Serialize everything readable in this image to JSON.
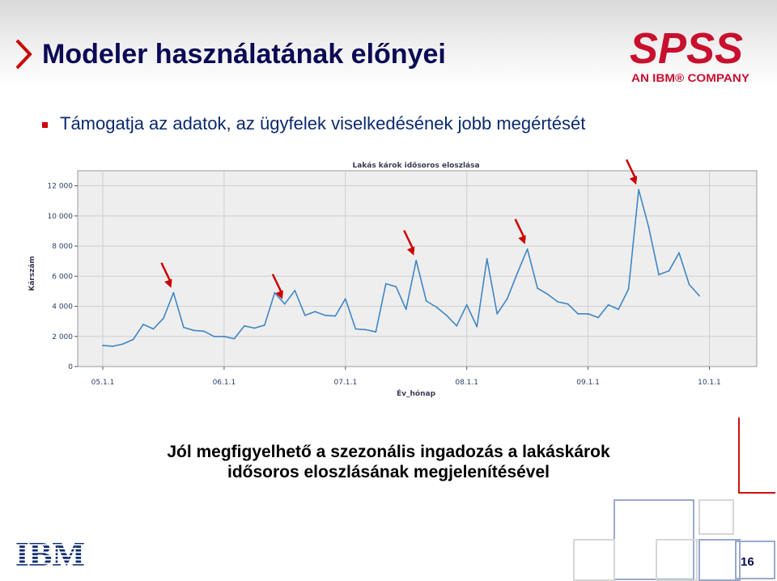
{
  "slide": {
    "title": "Modeler használatának előnyei",
    "bullet": "Támogatja az adatok, az ügyfelek viselkedésének jobb megértését",
    "caption_line1": "Jól megfigyelhető a szezonális ingadozás a lakáskárok",
    "caption_line2": "idősoros eloszlásának megjelenítésével",
    "page_number": "16"
  },
  "logos": {
    "spss_text": "SPSS",
    "spss_tagline": "AN IBM® COMPANY",
    "ibm_text": "IBM"
  },
  "colors": {
    "title": "#0a0a55",
    "bullet_text": "#0a2a6e",
    "accent_red": "#cc0000",
    "line": "#3f86c4",
    "arrow": "#cc0000"
  },
  "chart_data": {
    "type": "line",
    "title": "Lakás károk idősoros eloszlása",
    "xlabel": "Év_hónap",
    "ylabel": "Kárszám",
    "ylim": [
      0,
      13000
    ],
    "y_ticks": [
      0,
      2000,
      4000,
      6000,
      8000,
      10000,
      12000
    ],
    "y_tick_labels": [
      "0",
      "2 000",
      "4 000",
      "6 000",
      "8 000",
      "10 000",
      "12 000"
    ],
    "x_tick_labels": [
      "05.1.1",
      "06.1.1",
      "07.1.1",
      "08.1.1",
      "09.1.1",
      "10.1.1"
    ],
    "x_tick_index": [
      0,
      12,
      24,
      36,
      48,
      60
    ],
    "grid": true,
    "series": [
      {
        "values": [
          1400,
          1350,
          1500,
          1800,
          2800,
          2500,
          3200,
          4900,
          2600,
          2400,
          2350,
          2000,
          2000,
          1850,
          2700,
          2550,
          2750,
          4900,
          4150,
          5050,
          3400,
          3650,
          3400,
          3350,
          4500,
          2500,
          2450,
          2300,
          5500,
          5300,
          3800,
          7050,
          4350,
          3950,
          3400,
          2700,
          4100,
          2650,
          7150,
          3500,
          4500,
          6200,
          7800,
          5200,
          4800,
          4300,
          4150,
          3500,
          3500,
          3250,
          4100,
          3800,
          5150,
          11750,
          9250,
          6100,
          6350,
          7550,
          5450,
          4700
        ]
      }
    ],
    "arrow_point_index": [
      7,
      18,
      31,
      42,
      53
    ]
  }
}
